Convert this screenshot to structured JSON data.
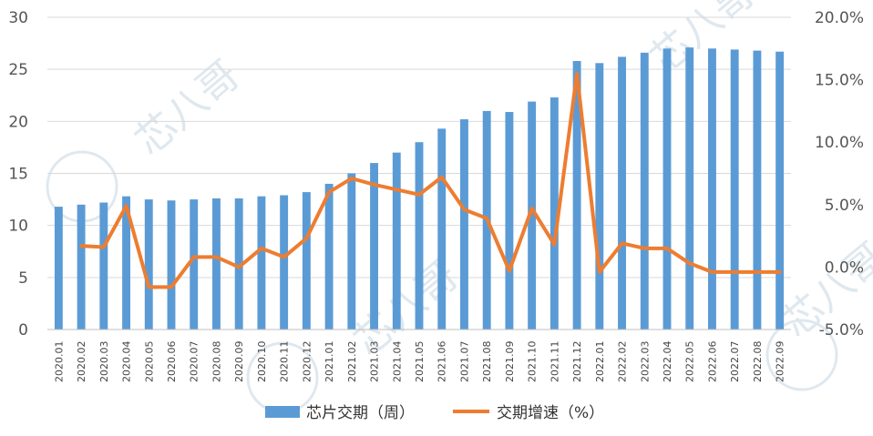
{
  "chart_data": {
    "type": "bar",
    "categories": [
      "2020.01",
      "2020.02",
      "2020.03",
      "2020.04",
      "2020.05",
      "2020.06",
      "2020.07",
      "2020.08",
      "2020.09",
      "2020.10",
      "2020.11",
      "2020.12",
      "2021.01",
      "2021.02",
      "2021.03",
      "2021.04",
      "2021.05",
      "2021.06",
      "2021.07",
      "2021.08",
      "2021.09",
      "2021.10",
      "2021.11",
      "2021.12",
      "2022.01",
      "2022.02",
      "2022.03",
      "2022.04",
      "2022.05",
      "2022.06",
      "2022.07",
      "2022.08",
      "2022.09"
    ],
    "series": [
      {
        "name": "芯片交期（周）",
        "type": "bar",
        "axis": "left",
        "color": "#5b9bd5",
        "values": [
          11.8,
          12.0,
          12.2,
          12.8,
          12.5,
          12.4,
          12.5,
          12.6,
          12.6,
          12.8,
          12.9,
          13.2,
          14.0,
          15.0,
          16.0,
          17.0,
          18.0,
          19.3,
          20.2,
          21.0,
          20.9,
          21.9,
          22.3,
          25.8,
          25.6,
          26.2,
          26.6,
          27.0,
          27.1,
          27.0,
          26.9,
          26.8,
          26.7
        ]
      },
      {
        "name": "交期增速（%）",
        "type": "line",
        "axis": "right",
        "color": "#ed7d31",
        "values": [
          null,
          1.7,
          1.6,
          4.9,
          -1.6,
          -1.6,
          0.8,
          0.8,
          0.0,
          1.5,
          0.8,
          2.3,
          6.0,
          7.1,
          6.6,
          6.2,
          5.8,
          7.2,
          4.6,
          3.9,
          -0.3,
          4.7,
          1.8,
          15.5,
          -0.4,
          1.9,
          1.5,
          1.5,
          0.3,
          -0.4,
          -0.4,
          -0.4,
          -0.4
        ]
      }
    ],
    "y_left": {
      "range": [
        0,
        30
      ],
      "ticks": [
        0,
        5,
        10,
        15,
        20,
        25,
        30
      ],
      "tick_labels": [
        "0",
        "5",
        "10",
        "15",
        "20",
        "25",
        "30"
      ]
    },
    "y_right": {
      "range": [
        -5,
        20
      ],
      "ticks": [
        -5,
        0,
        5,
        10,
        15,
        20
      ],
      "tick_labels": [
        "-5.0%",
        "0.0%",
        "5.0%",
        "10.0%",
        "15.0%",
        "20.0%"
      ]
    },
    "grid": true,
    "legend_position": "bottom"
  },
  "watermark": {
    "text": "芯八哥",
    "color": "#dfe8ef"
  },
  "colors": {
    "grid": "#d9d9d9",
    "bar": "#5b9bd5",
    "line": "#ed7d31",
    "axis_text": "#555555"
  }
}
